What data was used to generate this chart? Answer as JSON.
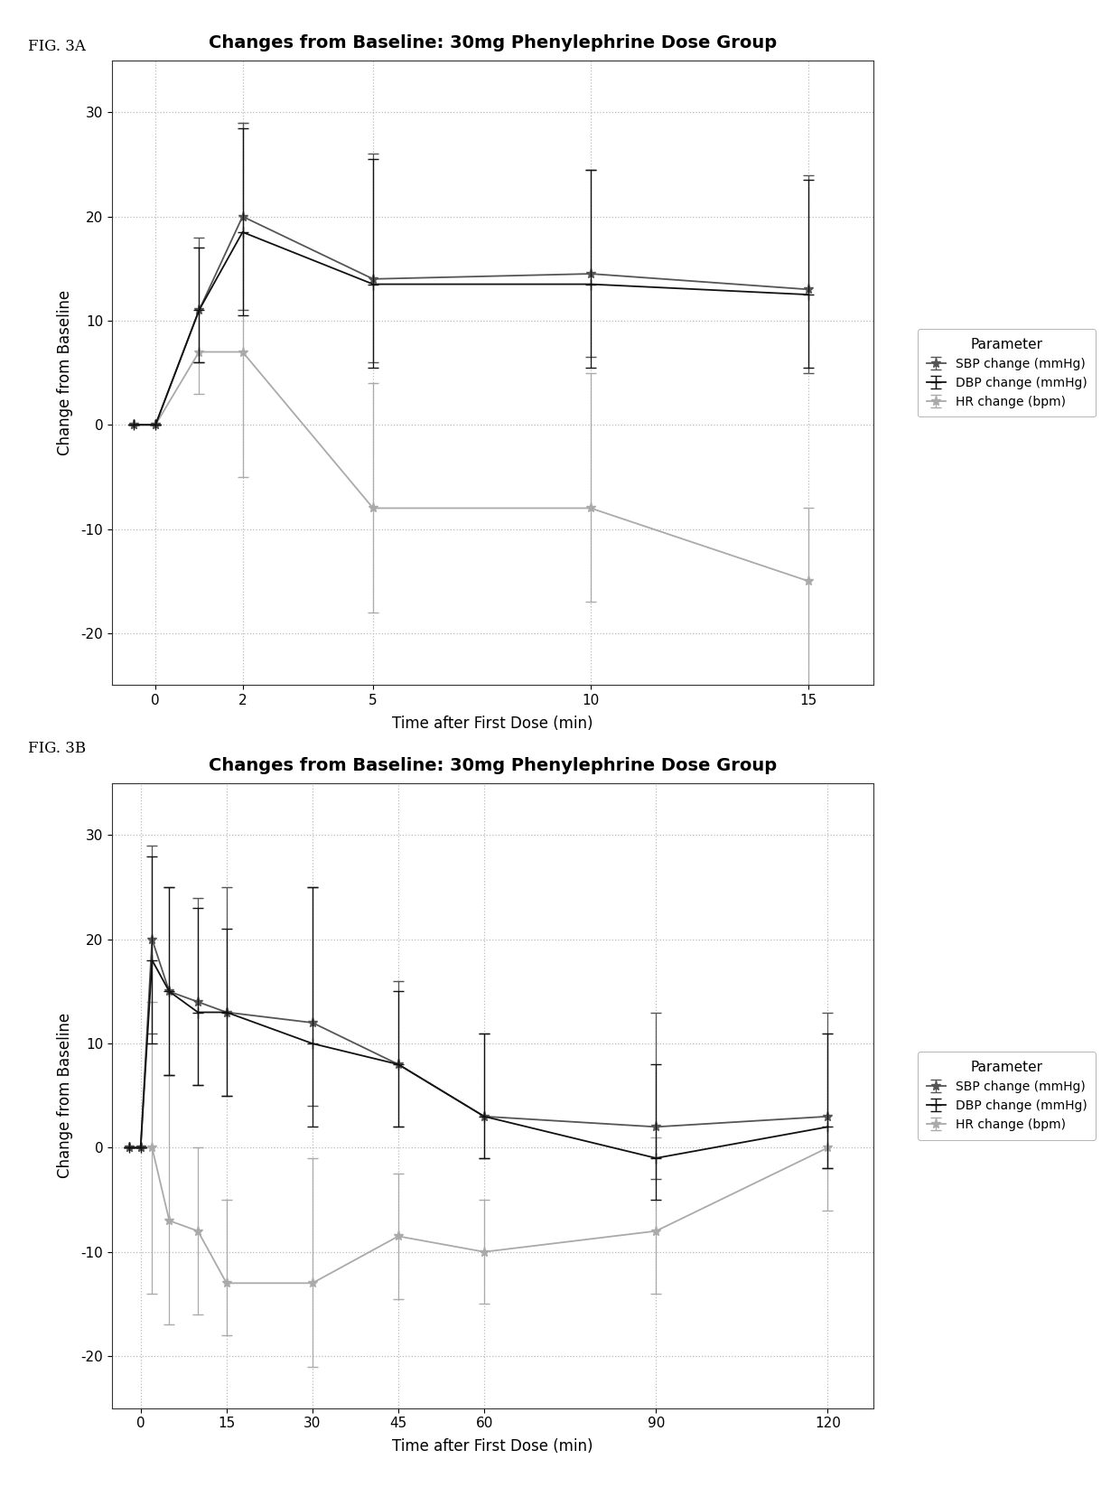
{
  "fig3a": {
    "title": "Changes from Baseline: 30mg Phenylephrine Dose Group",
    "xlabel": "Time after First Dose (min)",
    "ylabel": "Change from Baseline",
    "x_values": [
      -0.5,
      0,
      1,
      2,
      5,
      10,
      15
    ],
    "x_ticks": [
      0,
      2,
      5,
      10,
      15
    ],
    "xlim": [
      -1.0,
      16.5
    ],
    "ylim": [
      -25,
      35
    ],
    "yticks": [
      -20,
      -10,
      0,
      10,
      20,
      30
    ],
    "SBP_y": [
      0,
      0,
      11,
      20,
      14,
      14.5,
      13
    ],
    "SBP_el": [
      0,
      0,
      5,
      9,
      8,
      8,
      8
    ],
    "SBP_eh": [
      0,
      0,
      7,
      9,
      12,
      10,
      11
    ],
    "DBP_y": [
      0,
      0,
      11,
      18.5,
      13.5,
      13.5,
      12.5
    ],
    "DBP_el": [
      0,
      0,
      5,
      8,
      8,
      8,
      7
    ],
    "DBP_eh": [
      0,
      0,
      6,
      10,
      12,
      11,
      11
    ],
    "HR_y": [
      0,
      0,
      7,
      7,
      -8,
      -8,
      -15
    ],
    "HR_el": [
      0,
      0,
      4,
      12,
      10,
      9,
      11
    ],
    "HR_eh": [
      0,
      0,
      10,
      22,
      12,
      13,
      7
    ]
  },
  "fig3b": {
    "title": "Changes from Baseline: 30mg Phenylephrine Dose Group",
    "xlabel": "Time after First Dose (min)",
    "ylabel": "Change from Baseline",
    "x_values": [
      -2,
      0,
      2,
      5,
      10,
      15,
      30,
      45,
      60,
      90,
      120
    ],
    "x_ticks": [
      0,
      15,
      30,
      45,
      60,
      90,
      120
    ],
    "xlim": [
      -5,
      128
    ],
    "ylim": [
      -25,
      35
    ],
    "yticks": [
      -20,
      -10,
      0,
      10,
      20,
      30
    ],
    "SBP_y": [
      0,
      0,
      20,
      15,
      14,
      13,
      12,
      8,
      3,
      2,
      3
    ],
    "SBP_el": [
      0,
      0,
      9,
      8,
      8,
      8,
      8,
      6,
      4,
      5,
      5
    ],
    "SBP_eh": [
      0,
      0,
      9,
      10,
      10,
      12,
      13,
      8,
      8,
      11,
      10
    ],
    "DBP_y": [
      0,
      0,
      18,
      15,
      13,
      13,
      10,
      8,
      3,
      -1,
      2
    ],
    "DBP_el": [
      0,
      0,
      8,
      8,
      7,
      8,
      8,
      6,
      4,
      4,
      4
    ],
    "DBP_eh": [
      0,
      0,
      10,
      10,
      10,
      8,
      15,
      7,
      8,
      9,
      9
    ],
    "HR_y": [
      0,
      0,
      0,
      -7,
      -8,
      -13,
      -13,
      -8.5,
      -10,
      -8,
      0
    ],
    "HR_el": [
      0,
      0,
      14,
      10,
      8,
      5,
      8,
      6,
      5,
      6,
      6
    ],
    "HR_eh": [
      0,
      0,
      14,
      14,
      8,
      8,
      12,
      6,
      5,
      9,
      11
    ]
  },
  "fig_label_a": "FIG. 3A",
  "fig_label_b": "FIG. 3B",
  "legend_title": "Parameter",
  "sbp_label": "SBP change (mmHg)",
  "dbp_label": "DBP change (mmHg)",
  "hr_label": "HR change (bpm)",
  "color_sbp": "#555555",
  "color_dbp": "#111111",
  "color_hr": "#aaaaaa",
  "bg_color": "#ffffff",
  "grid_color": "#bbbbbb"
}
